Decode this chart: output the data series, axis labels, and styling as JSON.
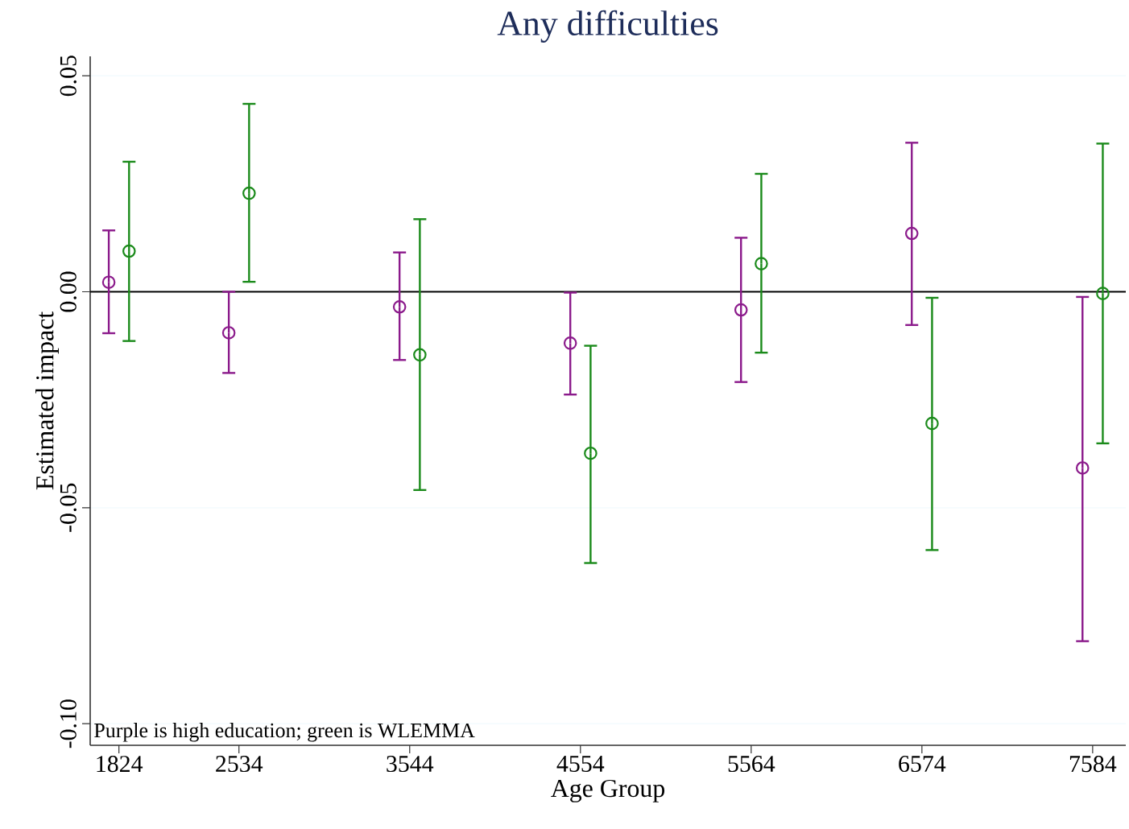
{
  "chart_data": {
    "type": "scatter",
    "title": "Any difficulties",
    "xlabel": "Age Group",
    "ylabel": "Estimated impact",
    "series": [
      {
        "color": "#8b1a8b",
        "x": [
          1764,
          2474,
          3484,
          4494,
          5504,
          6514,
          7524
        ],
        "values": [
          0.0022,
          -0.0095,
          -0.0035,
          -0.0119,
          -0.0042,
          0.0135,
          -0.0408
        ],
        "errors": [
          [
            -0.0096,
            0.0142
          ],
          [
            -0.0188,
            0.0
          ],
          [
            -0.0158,
            0.0091
          ],
          [
            -0.0238,
            -0.0002
          ],
          [
            -0.0209,
            0.0125
          ],
          [
            -0.0077,
            0.0345
          ],
          [
            -0.0809,
            -0.0012
          ]
        ]
      },
      {
        "color": "#1a8a1a",
        "x": [
          1884,
          2594,
          3604,
          4614,
          5624,
          6634,
          7644
        ],
        "values": [
          0.0094,
          0.0228,
          -0.0146,
          -0.0374,
          0.0065,
          -0.0305,
          -0.0004
        ],
        "errors": [
          [
            -0.0114,
            0.0301
          ],
          [
            0.0023,
            0.0435
          ],
          [
            -0.0459,
            0.0168
          ],
          [
            -0.0628,
            -0.0125
          ],
          [
            -0.0141,
            0.0273
          ],
          [
            -0.0598,
            -0.0014
          ],
          [
            -0.0351,
            0.0343
          ]
        ]
      }
    ],
    "xlim": [
      1654,
      7780
    ],
    "xticks": [
      1824,
      2534,
      3544,
      4554,
      5564,
      6574,
      7584
    ],
    "ylim": [
      -0.105,
      0.0545
    ],
    "yticks": [
      {
        "value": 0.05,
        "label": "0.05"
      },
      {
        "value": 0,
        "label": "0.00"
      },
      {
        "value": -0.05,
        "label": "-0.05"
      },
      {
        "value": -0.1,
        "label": "-0.10"
      }
    ],
    "grid": "y",
    "marker": "circle",
    "ref_lines": [
      {
        "axis": "y",
        "value": 0,
        "color": "#000000"
      }
    ],
    "annotations": [
      "Purple is high education; green is WLEMMA"
    ]
  }
}
